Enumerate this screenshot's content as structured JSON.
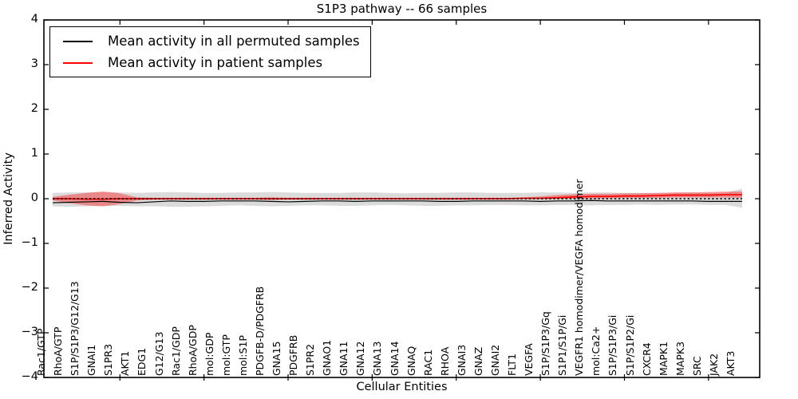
{
  "chart_data": {
    "type": "line",
    "title": "S1P3 pathway -- 66 samples",
    "xlabel": "Cellular Entities",
    "ylabel": "Inferred Activity",
    "ylim": [
      -4,
      4
    ],
    "grid": false,
    "legend_position": "upper left",
    "yticks": [
      -4,
      -3,
      -2,
      -1,
      0,
      1,
      2,
      3,
      4
    ],
    "yticklabels": [
      "−4",
      "−3",
      "−2",
      "−1",
      "0",
      "1",
      "2",
      "3",
      "4"
    ],
    "xtick_indices": [
      4,
      9,
      14,
      19,
      24,
      29,
      34,
      39
    ],
    "categories": [
      "Rac1/GTP",
      "RhoA/GTP",
      "S1P/S1P3/G12/G13",
      "GNAI1",
      "S1PR3",
      "AKT1",
      "EDG1",
      "G12/G13",
      "Rac1/GDP",
      "RhoA/GDP",
      "mol:GDP",
      "mol:GTP",
      "mol:S1P",
      "PDGFB-D/PDGFRB",
      "GNA15",
      "PDGFRB",
      "S1PR2",
      "GNAO1",
      "GNA11",
      "GNA12",
      "GNA13",
      "GNA14",
      "GNAQ",
      "RAC1",
      "RHOA",
      "GNAI3",
      "GNAZ",
      "GNAI2",
      "FLT1",
      "VEGFA",
      "S1P/S1P3/Gq",
      "S1P1/S1P/Gi",
      "VEGFR1 homodimer/VEGFA homodimer",
      "mol:Ca2+",
      "S1P/S1P3/Gi",
      "S1P/S1P2/Gi",
      "CXCR4",
      "MAPK1",
      "MAPK3",
      "SRC",
      "JAK2",
      "AKT3"
    ],
    "zero_line": true,
    "zero_line_color": "#000000",
    "series": [
      {
        "name": "Mean activity in all permuted samples",
        "color": "#000000",
        "band_color": "#000000",
        "band_opacity": 0.14,
        "values": [
          -0.09,
          -0.08,
          -0.07,
          -0.06,
          -0.08,
          -0.09,
          -0.07,
          -0.05,
          -0.06,
          -0.06,
          -0.05,
          -0.05,
          -0.05,
          -0.06,
          -0.07,
          -0.06,
          -0.05,
          -0.05,
          -0.06,
          -0.05,
          -0.05,
          -0.05,
          -0.05,
          -0.06,
          -0.06,
          -0.05,
          -0.05,
          -0.05,
          -0.05,
          -0.06,
          -0.05,
          -0.05,
          -0.04,
          -0.05,
          -0.05,
          -0.05,
          -0.05,
          -0.05,
          -0.05,
          -0.06,
          -0.06,
          -0.06
        ],
        "band_upper": [
          0.13,
          0.14,
          0.14,
          0.15,
          0.14,
          0.13,
          0.14,
          0.15,
          0.14,
          0.13,
          0.13,
          0.14,
          0.14,
          0.15,
          0.14,
          0.13,
          0.13,
          0.13,
          0.14,
          0.14,
          0.13,
          0.12,
          0.13,
          0.13,
          0.14,
          0.14,
          0.13,
          0.13,
          0.13,
          0.14,
          0.14,
          0.13,
          0.14,
          0.14,
          0.13,
          0.13,
          0.13,
          0.13,
          0.14,
          0.13,
          0.13,
          0.23
        ],
        "band_lower": [
          -0.17,
          -0.18,
          -0.17,
          -0.16,
          -0.16,
          -0.17,
          -0.17,
          -0.18,
          -0.18,
          -0.17,
          -0.16,
          -0.15,
          -0.16,
          -0.17,
          -0.16,
          -0.15,
          -0.15,
          -0.16,
          -0.16,
          -0.15,
          -0.14,
          -0.15,
          -0.16,
          -0.16,
          -0.15,
          -0.15,
          -0.14,
          -0.14,
          -0.15,
          -0.15,
          -0.14,
          -0.14,
          -0.15,
          -0.14,
          -0.14,
          -0.13,
          -0.14,
          -0.13,
          -0.13,
          -0.14,
          -0.14,
          -0.2
        ]
      },
      {
        "name": "Mean activity in patient samples",
        "color": "#ff0000",
        "band_color": "#ff0000",
        "band_opacity": 0.38,
        "values": [
          0.0,
          0.0,
          -0.01,
          -0.01,
          0.0,
          0.0,
          0.0,
          0.0,
          0.0,
          0.0,
          0.0,
          0.0,
          0.0,
          0.0,
          0.0,
          0.0,
          0.0,
          0.0,
          0.0,
          0.0,
          0.0,
          0.0,
          0.0,
          0.0,
          0.0,
          0.0,
          0.0,
          0.0,
          0.01,
          0.01,
          0.02,
          0.04,
          0.05,
          0.05,
          0.06,
          0.06,
          0.07,
          0.08,
          0.08,
          0.08,
          0.09,
          0.09
        ],
        "band_upper": [
          0.04,
          0.09,
          0.13,
          0.16,
          0.12,
          0.03,
          0.02,
          0.02,
          0.02,
          0.02,
          0.02,
          0.02,
          0.02,
          0.03,
          0.02,
          0.02,
          0.02,
          0.02,
          0.02,
          0.02,
          0.02,
          0.02,
          0.02,
          0.02,
          0.02,
          0.02,
          0.02,
          0.02,
          0.03,
          0.05,
          0.08,
          0.1,
          0.11,
          0.11,
          0.12,
          0.12,
          0.13,
          0.14,
          0.14,
          0.15,
          0.16,
          0.16
        ],
        "band_lower": [
          -0.04,
          -0.1,
          -0.15,
          -0.17,
          -0.12,
          -0.04,
          -0.02,
          -0.02,
          -0.02,
          -0.02,
          -0.02,
          -0.02,
          -0.02,
          -0.03,
          -0.02,
          -0.02,
          -0.02,
          -0.02,
          -0.02,
          -0.02,
          -0.02,
          -0.02,
          -0.02,
          -0.02,
          -0.02,
          -0.02,
          -0.02,
          -0.02,
          -0.01,
          0.0,
          0.0,
          0.0,
          0.01,
          0.01,
          0.02,
          0.02,
          0.02,
          0.03,
          0.03,
          0.03,
          0.03,
          0.02
        ]
      }
    ]
  },
  "legend": {
    "entries": [
      {
        "label": "Mean activity in all permuted samples",
        "color": "#000000"
      },
      {
        "label": "Mean activity in patient samples",
        "color": "#ff0000"
      }
    ]
  }
}
